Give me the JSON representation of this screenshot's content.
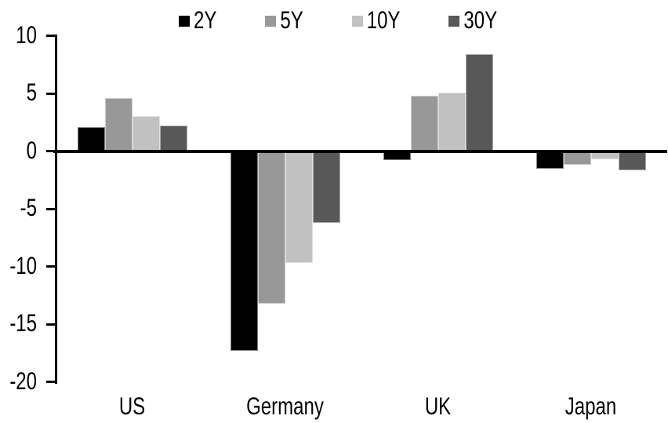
{
  "chart_data": {
    "type": "bar",
    "title": "",
    "xlabel": "",
    "ylabel": "",
    "categories": [
      "US",
      "Germany",
      "UK",
      "Japan"
    ],
    "series": [
      {
        "name": "2Y",
        "color": "#000000",
        "values": [
          2.1,
          -17.3,
          -0.8,
          -1.5
        ]
      },
      {
        "name": "5Y",
        "color": "#989898",
        "values": [
          4.6,
          -13.2,
          4.8,
          -1.2
        ]
      },
      {
        "name": "10Y",
        "color": "#c1c1c1",
        "values": [
          3.0,
          -9.7,
          5.1,
          -0.7
        ]
      },
      {
        "name": "30Y",
        "color": "#585858",
        "values": [
          2.2,
          -6.2,
          8.4,
          -1.7
        ]
      }
    ],
    "ylim": [
      -20,
      10
    ],
    "yticks": [
      10,
      5,
      0,
      -5,
      -10,
      -15,
      -20
    ],
    "legend_position": "top",
    "grid": false,
    "axis_color": "#000000",
    "background": "#ffffff"
  }
}
